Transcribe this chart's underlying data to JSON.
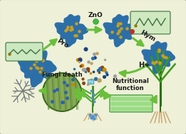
{
  "bg_color": "#eef0d8",
  "border_color": "#b8b890",
  "arrow_color": "#6bbf3a",
  "np_color": "#2c6fa8",
  "np_spot": "#c8a020",
  "np_spot2": "#d4b84a",
  "text_color": "#1a1a1a",
  "mol_box_color": "#cce8c0",
  "mol_line_color": "#3a7040",
  "hym_box_color": "#d0e8c0",
  "cell_color1": "#a8d898",
  "cell_color2": "#c8eab8",
  "leaf_green": "#4a8a28",
  "leaf_light": "#6ab040",
  "root_color": "#c8a870",
  "disease_green": "#7a9a50",
  "fungi_gray": "#707878",
  "scatter_colors": [
    "#2c6fa8",
    "#8B4513",
    "#c0a060",
    "#1a4080",
    "#cc8800",
    "#a0a0a0"
  ],
  "fig_width": 2.61,
  "fig_height": 1.89,
  "dpi": 100,
  "labels": {
    "pro": "Pro",
    "zno": "ZnO",
    "hym": "Hym",
    "h": "H+",
    "fungi": "Fungi death",
    "nutrition": "Nutritional\nfunction"
  }
}
